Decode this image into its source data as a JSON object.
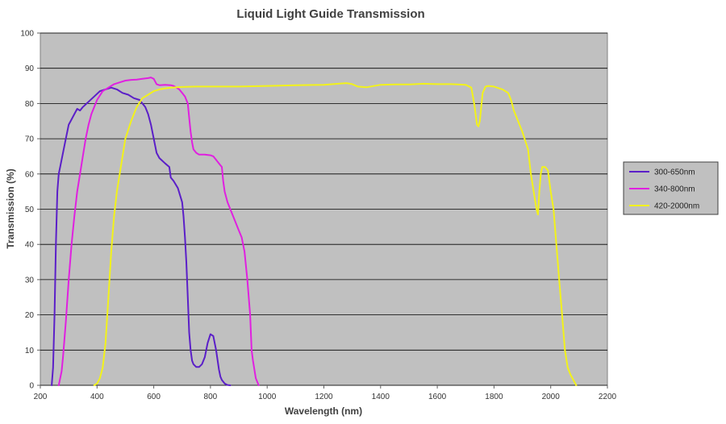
{
  "chart_data": {
    "type": "line",
    "title": "Liquid Light Guide Transmission",
    "xlabel": "Wavelength (nm)",
    "ylabel": "Transmission (%)",
    "xlim": [
      200,
      2200
    ],
    "ylim": [
      0,
      100
    ],
    "xticks": [
      200,
      400,
      600,
      800,
      1000,
      1200,
      1400,
      1600,
      1800,
      2000,
      2200
    ],
    "yticks": [
      0,
      10,
      20,
      30,
      40,
      50,
      60,
      70,
      80,
      90,
      100
    ],
    "grid": "horizontal",
    "legend_position": "right",
    "plot_background": "#C0C0C0",
    "series": [
      {
        "name": "300-650nm",
        "color": "#5B1FC8",
        "x": [
          240,
          245,
          250,
          255,
          260,
          265,
          270,
          280,
          290,
          300,
          310,
          320,
          330,
          340,
          350,
          370,
          390,
          410,
          430,
          450,
          470,
          490,
          510,
          530,
          550,
          570,
          580,
          590,
          600,
          610,
          620,
          640,
          655,
          660,
          670,
          685,
          700,
          705,
          710,
          715,
          720,
          725,
          730,
          735,
          740,
          750,
          760,
          770,
          780,
          790,
          800,
          810,
          820,
          830,
          835,
          840,
          850,
          860,
          870
        ],
        "y": [
          0,
          5,
          20,
          40,
          55,
          60,
          62,
          66,
          70,
          74,
          75.5,
          77,
          78.5,
          78,
          79,
          80.5,
          82,
          83.5,
          84,
          84.5,
          84,
          83,
          82.5,
          81.5,
          81,
          79,
          77,
          74,
          70,
          66,
          64.5,
          63,
          62,
          59,
          58,
          56,
          52,
          48,
          42,
          35,
          25,
          15,
          10,
          7,
          6,
          5.2,
          5.2,
          6,
          8,
          12,
          14.5,
          14,
          10,
          4.5,
          2.5,
          1.5,
          0.5,
          0.1,
          0
        ],
        "yy": []
      },
      {
        "name": "340-800nm",
        "color": "#E020E0",
        "x": [
          265,
          270,
          275,
          280,
          290,
          300,
          310,
          320,
          330,
          340,
          350,
          360,
          370,
          380,
          390,
          400,
          420,
          440,
          460,
          480,
          500,
          520,
          540,
          560,
          580,
          590,
          600,
          610,
          620,
          640,
          660,
          670,
          680,
          690,
          700,
          710,
          720,
          725,
          730,
          735,
          740,
          750,
          760,
          780,
          800,
          810,
          820,
          830,
          840,
          845,
          850,
          860,
          880,
          900,
          910,
          920,
          930,
          940,
          945,
          950,
          960,
          970
        ],
        "y": [
          0,
          2,
          4,
          8,
          18,
          30,
          40,
          48,
          55,
          60,
          65,
          70,
          74,
          77,
          79,
          81,
          83.5,
          84.5,
          85.5,
          86,
          86.5,
          86.7,
          86.8,
          87,
          87.2,
          87.4,
          87,
          85.5,
          85.2,
          85.3,
          85.2,
          85,
          84.5,
          84,
          83,
          82,
          80,
          76,
          72,
          69,
          67,
          66,
          65.5,
          65.5,
          65.3,
          65,
          64,
          63,
          62,
          58,
          55,
          52,
          48,
          44,
          42,
          38,
          30,
          20,
          10,
          7,
          2,
          0
        ],
        "yy": []
      },
      {
        "name": "420-2000nm",
        "color": "#F2F21A",
        "x": [
          390,
          400,
          410,
          420,
          430,
          440,
          450,
          460,
          470,
          480,
          490,
          500,
          520,
          540,
          560,
          580,
          600,
          620,
          640,
          660,
          700,
          750,
          800,
          900,
          1000,
          1100,
          1200,
          1250,
          1280,
          1300,
          1320,
          1350,
          1400,
          1450,
          1500,
          1550,
          1600,
          1650,
          1700,
          1720,
          1730,
          1740,
          1745,
          1750,
          1760,
          1770,
          1780,
          1800,
          1830,
          1850,
          1860,
          1870,
          1880,
          1900,
          1920,
          1930,
          1940,
          1950,
          1955,
          1960,
          1965,
          1970,
          1980,
          1990,
          2000,
          2010,
          2020,
          2030,
          2040,
          2050,
          2060,
          2070,
          2080,
          2090
        ],
        "y": [
          0,
          0.5,
          2,
          5,
          12,
          25,
          38,
          48,
          55,
          60,
          65,
          70,
          75,
          79,
          81.5,
          82.5,
          83.5,
          84,
          84.3,
          84.5,
          84.7,
          84.8,
          84.8,
          84.8,
          85,
          85.2,
          85.3,
          85.6,
          85.8,
          85.5,
          84.8,
          84.6,
          85.3,
          85.4,
          85.4,
          85.6,
          85.5,
          85.5,
          85.3,
          84.5,
          80,
          74,
          73.5,
          75,
          83,
          84.8,
          85,
          84.8,
          84,
          83,
          81,
          78,
          76,
          72,
          67,
          60,
          55,
          50,
          48.5,
          55,
          60,
          62,
          62,
          61,
          55,
          50,
          40,
          30,
          20,
          10,
          5,
          3,
          1.5,
          0
        ],
        "yy": []
      }
    ]
  }
}
